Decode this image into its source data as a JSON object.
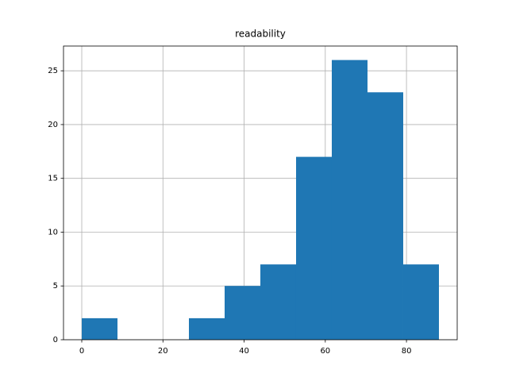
{
  "chart_data": {
    "type": "histogram",
    "title": "readability",
    "bins": [
      0,
      8.8,
      17.6,
      26.4,
      35.2,
      44,
      52.8,
      61.6,
      70.4,
      79.2,
      88
    ],
    "values": [
      2,
      0,
      0,
      2,
      5,
      7,
      17,
      26,
      23,
      7
    ],
    "color": "#1f77b4",
    "xlim": [
      -4.5,
      92.5
    ],
    "xticks": [
      0,
      20,
      40,
      60,
      80
    ],
    "ylim": [
      0,
      27.3
    ],
    "yticks": [
      0,
      5,
      10,
      15,
      20,
      25
    ],
    "grid": true
  }
}
